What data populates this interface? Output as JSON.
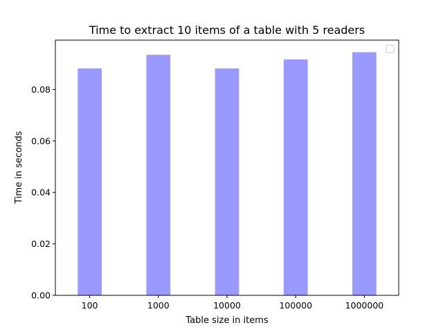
{
  "chart_data": {
    "type": "bar",
    "title": "Time to extract 10 items of a table with 5 readers",
    "xlabel": "Table size in items",
    "ylabel": "Time in seconds",
    "categories": [
      "100",
      "1000",
      "10000",
      "100000",
      "1000000"
    ],
    "values": [
      0.0882,
      0.0935,
      0.0882,
      0.0917,
      0.0945
    ],
    "ylim": [
      0,
      0.0992
    ],
    "yticks": [
      0.0,
      0.02,
      0.04,
      0.06,
      0.08
    ],
    "ytick_labels": [
      "0.00",
      "0.02",
      "0.04",
      "0.06",
      "0.08"
    ],
    "bar_color": "#9999ff",
    "grid": false,
    "legend": {
      "placement": "top-right",
      "entries": []
    }
  }
}
